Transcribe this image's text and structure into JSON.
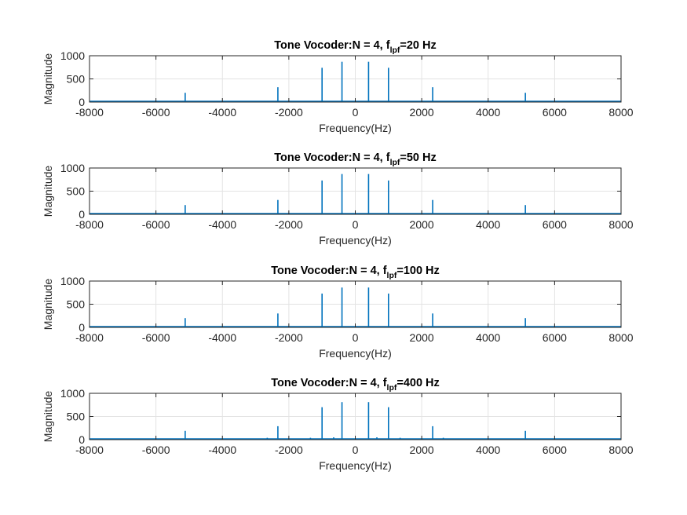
{
  "figure": {
    "background": "#ffffff",
    "line_color": "#0072bd",
    "grid_color": "#e3e3e3",
    "axis_color": "#262626"
  },
  "chart_data": [
    {
      "type": "line",
      "title_main": "Tone Vocoder:N = 4, f",
      "title_sub": "lpf",
      "title_tail": "=20 Hz",
      "xlabel": "Frequency(Hz)",
      "ylabel": "Magnitude",
      "xlim": [
        -8000,
        8000
      ],
      "ylim": [
        0,
        1000
      ],
      "xticks": [
        "-8000",
        "-6000",
        "-4000",
        "-2000",
        "0",
        "2000",
        "4000",
        "6000",
        "8000"
      ],
      "yticks": [
        "0",
        "500",
        "1000"
      ],
      "grid": true,
      "series": [
        {
          "peaks": [
            {
              "x": -5120,
              "y": 200
            },
            {
              "x": -2330,
              "y": 320
            },
            {
              "x": -1000,
              "y": 740
            },
            {
              "x": -400,
              "y": 870
            },
            {
              "x": 400,
              "y": 870
            },
            {
              "x": 1000,
              "y": 740
            },
            {
              "x": 2330,
              "y": 320
            },
            {
              "x": 5120,
              "y": 200
            }
          ]
        }
      ]
    },
    {
      "type": "line",
      "title_main": "Tone Vocoder:N = 4, f",
      "title_sub": "lpf",
      "title_tail": "=50 Hz",
      "xlabel": "Frequency(Hz)",
      "ylabel": "Magnitude",
      "xlim": [
        -8000,
        8000
      ],
      "ylim": [
        0,
        1000
      ],
      "xticks": [
        "-8000",
        "-6000",
        "-4000",
        "-2000",
        "0",
        "2000",
        "4000",
        "6000",
        "8000"
      ],
      "yticks": [
        "0",
        "500",
        "1000"
      ],
      "grid": true,
      "series": [
        {
          "peaks": [
            {
              "x": -5120,
              "y": 200
            },
            {
              "x": -2330,
              "y": 310
            },
            {
              "x": -1000,
              "y": 730
            },
            {
              "x": -400,
              "y": 870
            },
            {
              "x": 400,
              "y": 870
            },
            {
              "x": 1000,
              "y": 730
            },
            {
              "x": 2330,
              "y": 310
            },
            {
              "x": 5120,
              "y": 200
            }
          ]
        }
      ]
    },
    {
      "type": "line",
      "title_main": "Tone Vocoder:N = 4, f",
      "title_sub": "lpf",
      "title_tail": "=100 Hz",
      "xlabel": "Frequency(Hz)",
      "ylabel": "Magnitude",
      "xlim": [
        -8000,
        8000
      ],
      "ylim": [
        0,
        1000
      ],
      "xticks": [
        "-8000",
        "-6000",
        "-4000",
        "-2000",
        "0",
        "2000",
        "4000",
        "6000",
        "8000"
      ],
      "yticks": [
        "0",
        "500",
        "1000"
      ],
      "grid": true,
      "series": [
        {
          "peaks": [
            {
              "x": -5120,
              "y": 200
            },
            {
              "x": -2330,
              "y": 300
            },
            {
              "x": -1000,
              "y": 730
            },
            {
              "x": -400,
              "y": 860
            },
            {
              "x": 400,
              "y": 860
            },
            {
              "x": 1000,
              "y": 730
            },
            {
              "x": 2330,
              "y": 300
            },
            {
              "x": 5120,
              "y": 200
            }
          ]
        }
      ]
    },
    {
      "type": "line",
      "title_main": "Tone Vocoder:N = 4, f",
      "title_sub": "lpf",
      "title_tail": "=400 Hz",
      "xlabel": "Frequency(Hz)",
      "ylabel": "Magnitude",
      "xlim": [
        -8000,
        8000
      ],
      "ylim": [
        0,
        1000
      ],
      "xticks": [
        "-8000",
        "-6000",
        "-4000",
        "-2000",
        "0",
        "2000",
        "4000",
        "6000",
        "8000"
      ],
      "yticks": [
        "0",
        "500",
        "1000"
      ],
      "grid": true,
      "series": [
        {
          "peaks": [
            {
              "x": -5120,
              "y": 190
            },
            {
              "x": -2650,
              "y": 40
            },
            {
              "x": -2330,
              "y": 290
            },
            {
              "x": -1350,
              "y": 40
            },
            {
              "x": -1000,
              "y": 700
            },
            {
              "x": -650,
              "y": 50
            },
            {
              "x": -400,
              "y": 810
            },
            {
              "x": 400,
              "y": 810
            },
            {
              "x": 650,
              "y": 50
            },
            {
              "x": 1000,
              "y": 700
            },
            {
              "x": 1350,
              "y": 40
            },
            {
              "x": 2330,
              "y": 290
            },
            {
              "x": 2650,
              "y": 40
            },
            {
              "x": 5120,
              "y": 190
            }
          ]
        }
      ]
    }
  ]
}
